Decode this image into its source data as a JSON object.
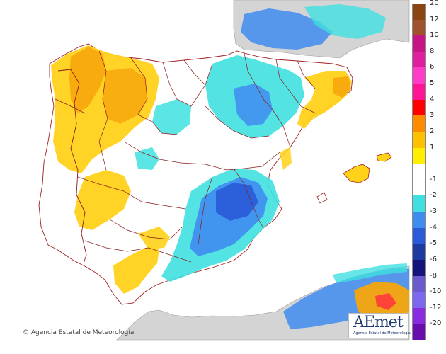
{
  "credit": "Agencia Estatal de Meteorología",
  "logo": {
    "text": "AEmet",
    "subtext": "Agencia Estatal de Meteorología"
  },
  "colors": {
    "sea": "#ffffff",
    "land_outside": "#d4d4d4",
    "border": "#8b1a1a",
    "coast": "#a02020"
  },
  "legend": [
    {
      "label": "20",
      "color": "#8b4513"
    },
    {
      "label": "12",
      "color": "#a0522d"
    },
    {
      "label": "10",
      "color": "#c71585"
    },
    {
      "label": "8",
      "color": "#e01fa0"
    },
    {
      "label": "6",
      "color": "#ff3cc8"
    },
    {
      "label": "5",
      "color": "#ff1493"
    },
    {
      "label": "4",
      "color": "#ff0000"
    },
    {
      "label": "3",
      "color": "#ff8c00"
    },
    {
      "label": "2",
      "color": "#ffc000"
    },
    {
      "label": "1",
      "color": "#ffee00"
    },
    {
      "label": "",
      "color": "#ffffff"
    },
    {
      "label": "-1",
      "color": "#ffffff"
    },
    {
      "label": "-2",
      "color": "#40e0e0"
    },
    {
      "label": "-3",
      "color": "#3f8cf0"
    },
    {
      "label": "-4",
      "color": "#2a5ad8"
    },
    {
      "label": "-5",
      "color": "#1e3aa0"
    },
    {
      "label": "-6",
      "color": "#14147a"
    },
    {
      "label": "-8",
      "color": "#6a5acd"
    },
    {
      "label": "-10",
      "color": "#7b68ee"
    },
    {
      "label": "-12",
      "color": "#8a2be2"
    },
    {
      "label": "-20",
      "color": "#6a0dad"
    }
  ]
}
